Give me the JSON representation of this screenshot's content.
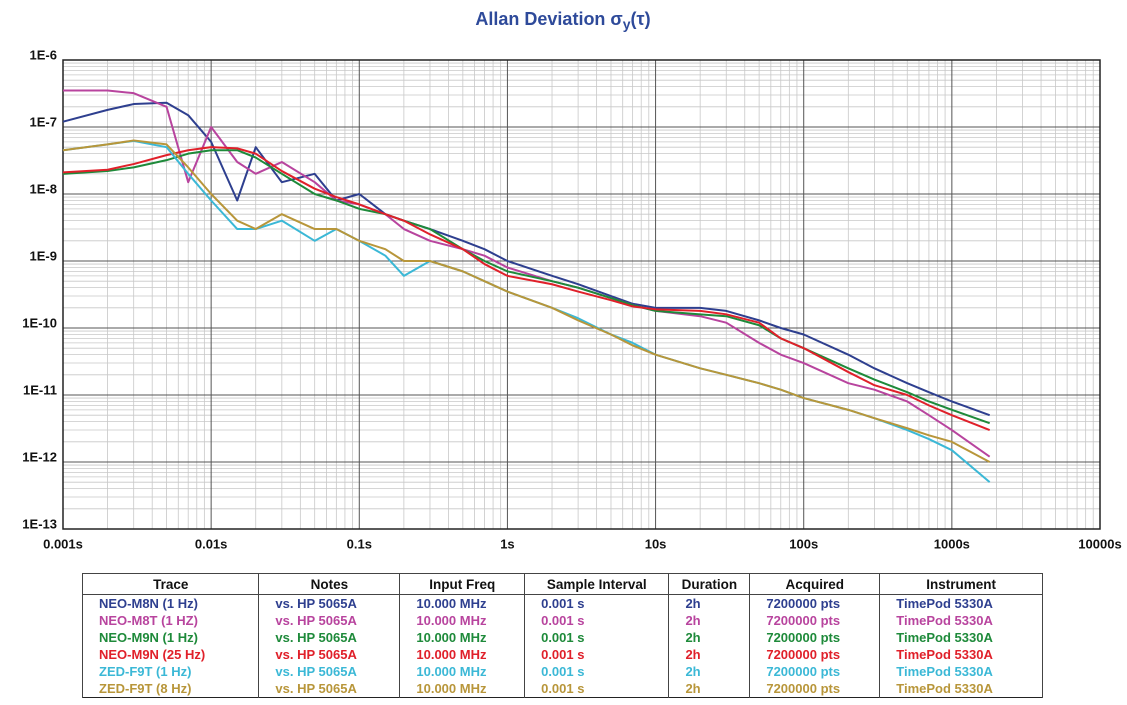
{
  "chart_data": {
    "type": "line",
    "title": "Allan Deviation σ",
    "title_subscript": "y",
    "title_suffix": "(τ)",
    "xscale": "log",
    "yscale": "log",
    "grid": true,
    "minor_grid": true,
    "xlim": [
      0.001,
      10000
    ],
    "ylim": [
      1e-13,
      1e-06
    ],
    "xticks": [
      {
        "value": 0.001,
        "label": "0.001s"
      },
      {
        "value": 0.01,
        "label": "0.01s"
      },
      {
        "value": 0.1,
        "label": "0.1s"
      },
      {
        "value": 1,
        "label": "1s"
      },
      {
        "value": 10,
        "label": "10s"
      },
      {
        "value": 100,
        "label": "100s"
      },
      {
        "value": 1000,
        "label": "1000s"
      },
      {
        "value": 10000,
        "label": "10000s"
      }
    ],
    "yticks": [
      {
        "value": 1e-13,
        "label": "1E-13"
      },
      {
        "value": 1e-12,
        "label": "1E-12"
      },
      {
        "value": 1e-11,
        "label": "1E-11"
      },
      {
        "value": 1e-10,
        "label": "1E-10"
      },
      {
        "value": 1e-09,
        "label": "1E-9"
      },
      {
        "value": 1e-08,
        "label": "1E-8"
      },
      {
        "value": 1e-07,
        "label": "1E-7"
      },
      {
        "value": 1e-06,
        "label": "1E-6"
      }
    ],
    "x": [
      0.001,
      0.002,
      0.003,
      0.005,
      0.007,
      0.01,
      0.015,
      0.02,
      0.03,
      0.05,
      0.07,
      0.1,
      0.15,
      0.2,
      0.3,
      0.5,
      0.7,
      1,
      2,
      3,
      5,
      7,
      10,
      20,
      30,
      50,
      70,
      100,
      200,
      300,
      500,
      700,
      1000,
      1800
    ],
    "series": [
      {
        "name": "NEO-M8N (1 Hz)",
        "color": "#2e3f8f",
        "values": [
          1.2e-07,
          1.8e-07,
          2.2e-07,
          2.3e-07,
          1.5e-07,
          6e-08,
          8e-09,
          5e-08,
          1.5e-08,
          2e-08,
          8e-09,
          1e-08,
          5e-09,
          4e-09,
          3e-09,
          2e-09,
          1.5e-09,
          1e-09,
          6e-10,
          4.5e-10,
          3e-10,
          2.3e-10,
          2e-10,
          2e-10,
          1.8e-10,
          1.3e-10,
          1e-10,
          8e-11,
          4e-11,
          2.5e-11,
          1.5e-11,
          1.1e-11,
          8e-12,
          5e-12
        ]
      },
      {
        "name": "NEO-M8T (1 HZ)",
        "color": "#b8449e",
        "values": [
          3.5e-07,
          3.5e-07,
          3.2e-07,
          2e-07,
          1.5e-08,
          1e-07,
          3e-08,
          2e-08,
          3e-08,
          1.5e-08,
          8e-09,
          7e-09,
          5e-09,
          3e-09,
          2e-09,
          1.5e-09,
          1.2e-09,
          8e-10,
          5e-10,
          4e-10,
          2.8e-10,
          2.2e-10,
          1.8e-10,
          1.5e-10,
          1.2e-10,
          6e-11,
          4e-11,
          3e-11,
          1.5e-11,
          1.2e-11,
          8e-12,
          5e-12,
          3e-12,
          1.2e-12
        ]
      },
      {
        "name": "NEO-M9N (1 Hz)",
        "color": "#1e8a3a",
        "values": [
          2e-08,
          2.2e-08,
          2.5e-08,
          3.2e-08,
          4e-08,
          4.5e-08,
          4.5e-08,
          3.5e-08,
          2e-08,
          1e-08,
          8e-09,
          6e-09,
          5e-09,
          4e-09,
          3e-09,
          1.5e-09,
          1e-09,
          7e-10,
          5e-10,
          4e-10,
          2.8e-10,
          2.2e-10,
          1.8e-10,
          1.6e-10,
          1.5e-10,
          1.1e-10,
          7e-11,
          5e-11,
          2.5e-11,
          1.7e-11,
          1.1e-11,
          8e-12,
          6e-12,
          3.8e-12
        ]
      },
      {
        "name": "NEO-M9N (25 Hz)",
        "color": "#e0202a",
        "values": [
          2.1e-08,
          2.3e-08,
          2.8e-08,
          3.8e-08,
          4.5e-08,
          5e-08,
          4.8e-08,
          4e-08,
          2.2e-08,
          1.2e-08,
          9e-09,
          7e-09,
          5e-09,
          4e-09,
          2.5e-09,
          1.5e-09,
          9e-10,
          6e-10,
          4.5e-10,
          3.5e-10,
          2.6e-10,
          2.1e-10,
          1.9e-10,
          1.8e-10,
          1.6e-10,
          1.2e-10,
          7e-11,
          5e-11,
          2.2e-11,
          1.4e-11,
          1e-11,
          7e-12,
          5e-12,
          3e-12
        ]
      },
      {
        "name": "ZED-F9T (1 Hz)",
        "color": "#3bb8d6",
        "values": [
          4.5e-08,
          5.5e-08,
          6.2e-08,
          5e-08,
          2e-08,
          8e-09,
          3e-09,
          3e-09,
          4e-09,
          2e-09,
          3e-09,
          2e-09,
          1.2e-09,
          6e-10,
          1e-09,
          7e-10,
          5e-10,
          3.5e-10,
          2e-10,
          1.4e-10,
          8e-11,
          6e-11,
          4e-11,
          2.5e-11,
          2e-11,
          1.5e-11,
          1.2e-11,
          9e-12,
          6e-12,
          4.5e-12,
          3e-12,
          2.2e-12,
          1.5e-12,
          5e-13
        ]
      },
      {
        "name": "ZED-F9T (8 Hz)",
        "color": "#b8963a",
        "values": [
          4.5e-08,
          5.5e-08,
          6.3e-08,
          5.5e-08,
          2.5e-08,
          1e-08,
          4e-09,
          3e-09,
          5e-09,
          3e-09,
          3e-09,
          2e-09,
          1.5e-09,
          1e-09,
          1e-09,
          7e-10,
          5e-10,
          3.5e-10,
          2e-10,
          1.3e-10,
          8e-11,
          5.5e-11,
          4e-11,
          2.5e-11,
          2e-11,
          1.5e-11,
          1.2e-11,
          9e-12,
          6e-12,
          4.5e-12,
          3.2e-12,
          2.5e-12,
          2e-12,
          1e-12
        ]
      }
    ],
    "table": {
      "columns": [
        "Trace",
        "Notes",
        "Input Freq",
        "Sample Interval",
        "Duration",
        "Acquired",
        "Instrument"
      ],
      "rows": [
        [
          "vs. HP 5065A",
          "10.000 MHz",
          "0.001 s",
          "2h",
          "7200000 pts",
          "TimePod 5330A"
        ],
        [
          "vs. HP 5065A",
          "10.000 MHz",
          "0.001 s",
          "2h",
          "7200000 pts",
          "TimePod 5330A"
        ],
        [
          "vs. HP 5065A",
          "10.000 MHz",
          "0.001 s",
          "2h",
          "7200000 pts",
          "TimePod 5330A"
        ],
        [
          "vs. HP 5065A",
          "10.000 MHz",
          "0.001 s",
          "2h",
          "7200000 pts",
          "TimePod 5330A"
        ],
        [
          "vs. HP 5065A",
          "10.000 MHz",
          "0.001 s",
          "2h",
          "7200000 pts",
          "TimePod 5330A"
        ],
        [
          "vs. HP 5065A",
          "10.000 MHz",
          "0.001 s",
          "2h",
          "7200000 pts",
          "TimePod 5330A"
        ]
      ]
    }
  }
}
